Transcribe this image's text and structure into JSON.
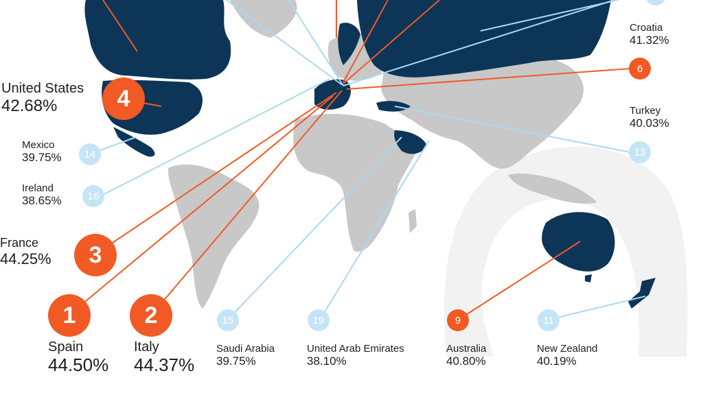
{
  "colors": {
    "ocean": "#ffffff",
    "land_highlight": "#0d3557",
    "land_other": "#c8c8c8",
    "leader_top": "#f15a24",
    "leader_other": "#a9d9f3",
    "watermark": "#f2f2f2"
  },
  "entries": [
    {
      "rank": "4",
      "country": "United States",
      "value": "42.68%"
    },
    {
      "rank": "14",
      "country": "Mexico",
      "value": "39.75%"
    },
    {
      "rank": "16",
      "country": "Ireland",
      "value": "38.65%"
    },
    {
      "rank": "3",
      "country": "France",
      "value": "44.25%"
    },
    {
      "rank": "1",
      "country": "Spain",
      "value": "44.50%"
    },
    {
      "rank": "2",
      "country": "Italy",
      "value": "44.37%"
    },
    {
      "rank": "15",
      "country": "Saudi Arabia",
      "value": "39.75%"
    },
    {
      "rank": "19",
      "country": "United Arab Emirates",
      "value": "38.10%"
    },
    {
      "rank": "9",
      "country": "Australia",
      "value": "40.80%"
    },
    {
      "rank": "11",
      "country": "New Zealand",
      "value": "40.19%"
    },
    {
      "rank": "6",
      "country": "Croatia",
      "value": "41.32%"
    },
    {
      "rank": "13",
      "country": "Turkey",
      "value": "40.03%"
    }
  ]
}
